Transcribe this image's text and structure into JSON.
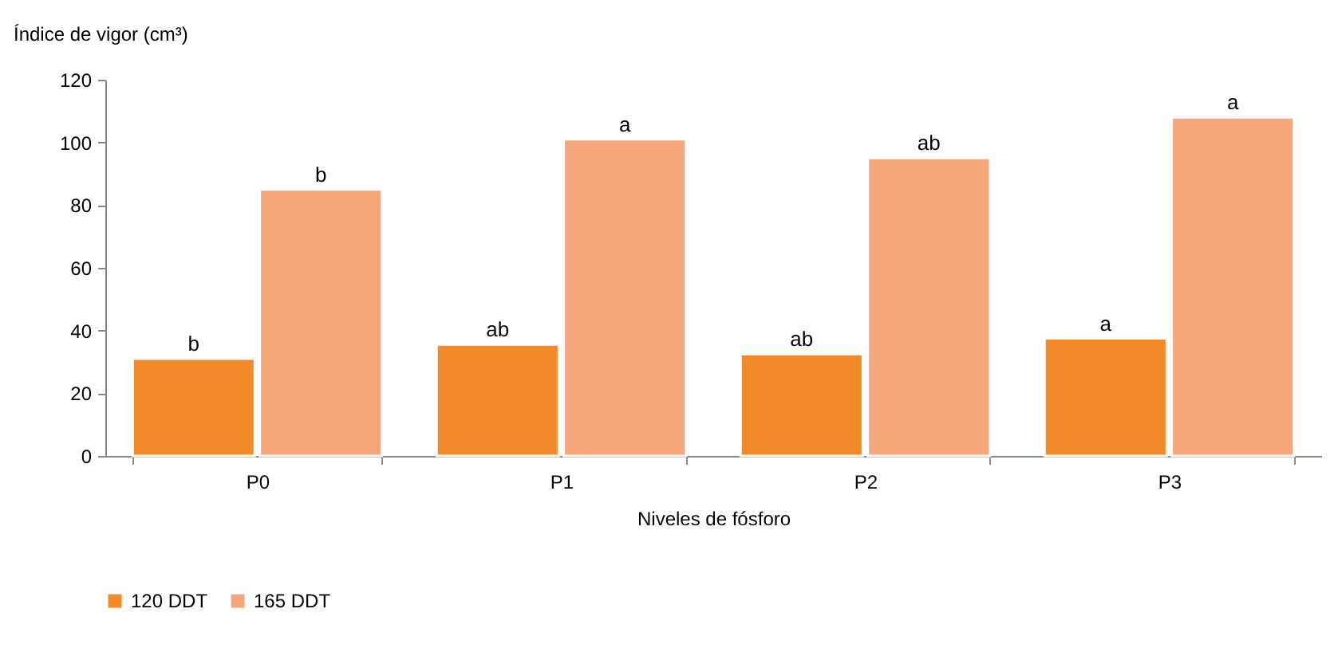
{
  "chart_data": {
    "type": "bar",
    "ylabel": "Índice de vigor (cm³)",
    "xlabel": "Niveles de fósforo",
    "categories": [
      "P0",
      "P1",
      "P2",
      "P3"
    ],
    "series": [
      {
        "name": "120 DDT",
        "color": "#f28a2a",
        "values": [
          31,
          35.5,
          32.5,
          37.5
        ],
        "value_labels": [
          "b",
          "ab",
          "ab",
          "a"
        ]
      },
      {
        "name": "165 DDT",
        "color": "#f5a67a",
        "values": [
          85,
          101,
          95,
          108
        ],
        "value_labels": [
          "b",
          "a",
          "ab",
          "a"
        ]
      }
    ],
    "ylim": [
      0,
      120
    ],
    "yticks": [
      0,
      20,
      40,
      60,
      80,
      100,
      120
    ],
    "grid": false,
    "legend": "bottom"
  }
}
